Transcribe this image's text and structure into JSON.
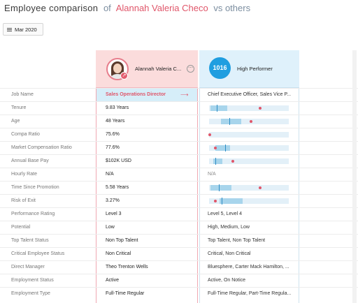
{
  "header": {
    "title": "Employee comparison",
    "of": "of",
    "employee_name": "Alannah Valeria Checo",
    "vs": "vs others"
  },
  "date_filter": {
    "label": "Mar 2020"
  },
  "employee_column": {
    "name": "Alannah Valeria C...",
    "menu_glyph": "⋯",
    "badge_glyph": "↗"
  },
  "peer_column": {
    "count": "1016",
    "label": "High Performer"
  },
  "rows": [
    {
      "label": "Job Name",
      "employee": "Sales Operations Director",
      "peers": "Chief Executive Officer, Sales Vice P...",
      "arrow": "⟶"
    },
    {
      "label": "Tenure",
      "employee": "9.83 Years",
      "bar": {
        "lo": 0.02,
        "hi": 0.23,
        "med": 0.1,
        "point": 0.63
      }
    },
    {
      "label": "Age",
      "employee": "48 Years",
      "bar": {
        "lo": 0.15,
        "hi": 0.4,
        "med": 0.25,
        "point": 0.52
      }
    },
    {
      "label": "Compa Ratio",
      "employee": "75.6%",
      "bar": {
        "point": 0.0
      }
    },
    {
      "label": "Market Compensation Ratio",
      "employee": "77.6%",
      "bar": {
        "lo": 0.08,
        "hi": 0.26,
        "med": 0.2,
        "point": 0.07
      }
    },
    {
      "label": "Annual Base Pay",
      "employee": "$102K USD",
      "bar": {
        "lo": 0.05,
        "hi": 0.17,
        "med": 0.08,
        "point": 0.29
      }
    },
    {
      "label": "Hourly Rate",
      "employee": "N/A",
      "peers": "N/A",
      "na": true
    },
    {
      "label": "Time Since Promotion",
      "employee": "5.58 Years",
      "bar": {
        "lo": 0.02,
        "hi": 0.28,
        "med": 0.12,
        "point": 0.63
      }
    },
    {
      "label": "Risk of Exit",
      "employee": "3.27%",
      "bar": {
        "lo": 0.13,
        "hi": 0.42,
        "med": 0.16,
        "point": 0.07
      }
    },
    {
      "label": "Performance Rating",
      "employee": "Level 3",
      "peers": "Level 5, Level 4"
    },
    {
      "label": "Potential",
      "employee": "Low",
      "peers": "High, Medium, Low"
    },
    {
      "label": "Top Talent Status",
      "employee": "Non Top Talent",
      "peers": "Top Talent, Non Top Talent"
    },
    {
      "label": "Critical Employee Status",
      "employee": "Non Critical",
      "peers": "Critical, Non Critical"
    },
    {
      "label": "Direct Manager",
      "employee": "Theo Trenton Wells",
      "peers": "Bluesphere, Carter Mack Hamilton, ..."
    },
    {
      "label": "Employment Status",
      "employee": "Active",
      "peers": "Active, On Notice"
    },
    {
      "label": "Employment Type",
      "employee": "Full-Time Regular",
      "peers": "Full-Time Regular, Part-Time Regula..."
    }
  ]
}
